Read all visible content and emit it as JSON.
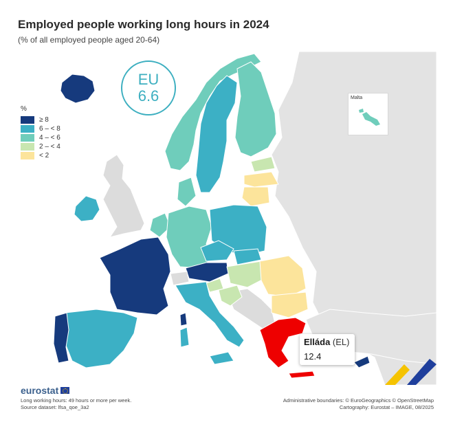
{
  "header": {
    "title": "Employed people working long hours in 2024",
    "subtitle": "(% of all employed people aged 20-64)"
  },
  "eu_badge": {
    "code": "EU",
    "value": "6.6"
  },
  "legend": {
    "unit": "%",
    "items": [
      {
        "label": "≥ 8",
        "color": "#163a7d"
      },
      {
        "label": "6 – < 8",
        "color": "#3cb0c5"
      },
      {
        "label": "4 – < 6",
        "color": "#6fcdbb"
      },
      {
        "label": "2 – < 4",
        "color": "#c8e6b0"
      },
      {
        "label": "< 2",
        "color": "#fce49b"
      }
    ]
  },
  "inset": {
    "label": "Malta"
  },
  "tooltip": {
    "name": "Elláda",
    "code": "(EL)",
    "value": "12.4"
  },
  "colors": {
    "highlight": "#ee0000",
    "no_data": "#d9d9d9",
    "non_eu": "#e6e6e6",
    "sea": "#ffffff"
  },
  "footer": {
    "logo": "eurostat",
    "note": "Long working hours: 49 hours or more per week.",
    "source": "Source dataset: lfsa_qoe_3a2",
    "boundaries": "Administrative boundaries: © EuroGeographics © OpenStreetMap",
    "cartography": "Cartography: Eurostat – IMAGE, 08/2025"
  }
}
